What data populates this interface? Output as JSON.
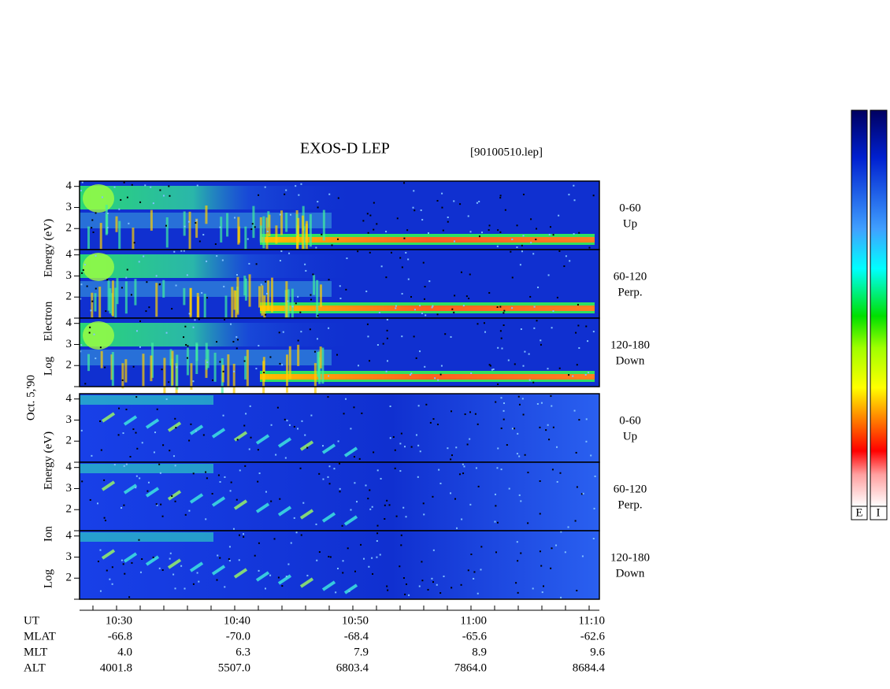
{
  "header": {
    "title": "EXOS-D LEP",
    "file": "[90100510.lep]"
  },
  "date": "Oct. 5,'90",
  "ylim": [
    1,
    4.25
  ],
  "yticks": [
    2,
    3,
    4
  ],
  "groups": [
    {
      "axis_words": [
        "Log",
        "Electron",
        "Energy (eV)"
      ],
      "panels": [
        {
          "angle": "0-60",
          "dir": "Up"
        },
        {
          "angle": "60-120",
          "dir": "Perp."
        },
        {
          "angle": "120-180",
          "dir": "Down"
        }
      ]
    },
    {
      "axis_words": [
        "Log",
        "Ion",
        "Energy (eV)"
      ],
      "panels": [
        {
          "angle": "0-60",
          "dir": "Up"
        },
        {
          "angle": "60-120",
          "dir": "Perp."
        },
        {
          "angle": "120-180",
          "dir": "Down"
        }
      ]
    }
  ],
  "time_axis": {
    "rows": [
      {
        "label": "UT",
        "values": [
          "10:30",
          "10:40",
          "10:50",
          "11:00",
          "11:10"
        ]
      },
      {
        "label": "MLAT",
        "values": [
          "-66.8",
          "-70.0",
          "-68.4",
          "-65.6",
          "-62.6"
        ]
      },
      {
        "label": "MLT",
        "values": [
          "4.0",
          "6.3",
          "7.9",
          "8.9",
          "9.6"
        ]
      },
      {
        "label": "ALT",
        "values": [
          "4001.8",
          "5507.0",
          "6803.4",
          "7864.0",
          "8684.4"
        ]
      }
    ]
  },
  "colorbars": [
    "E",
    "I"
  ]
}
